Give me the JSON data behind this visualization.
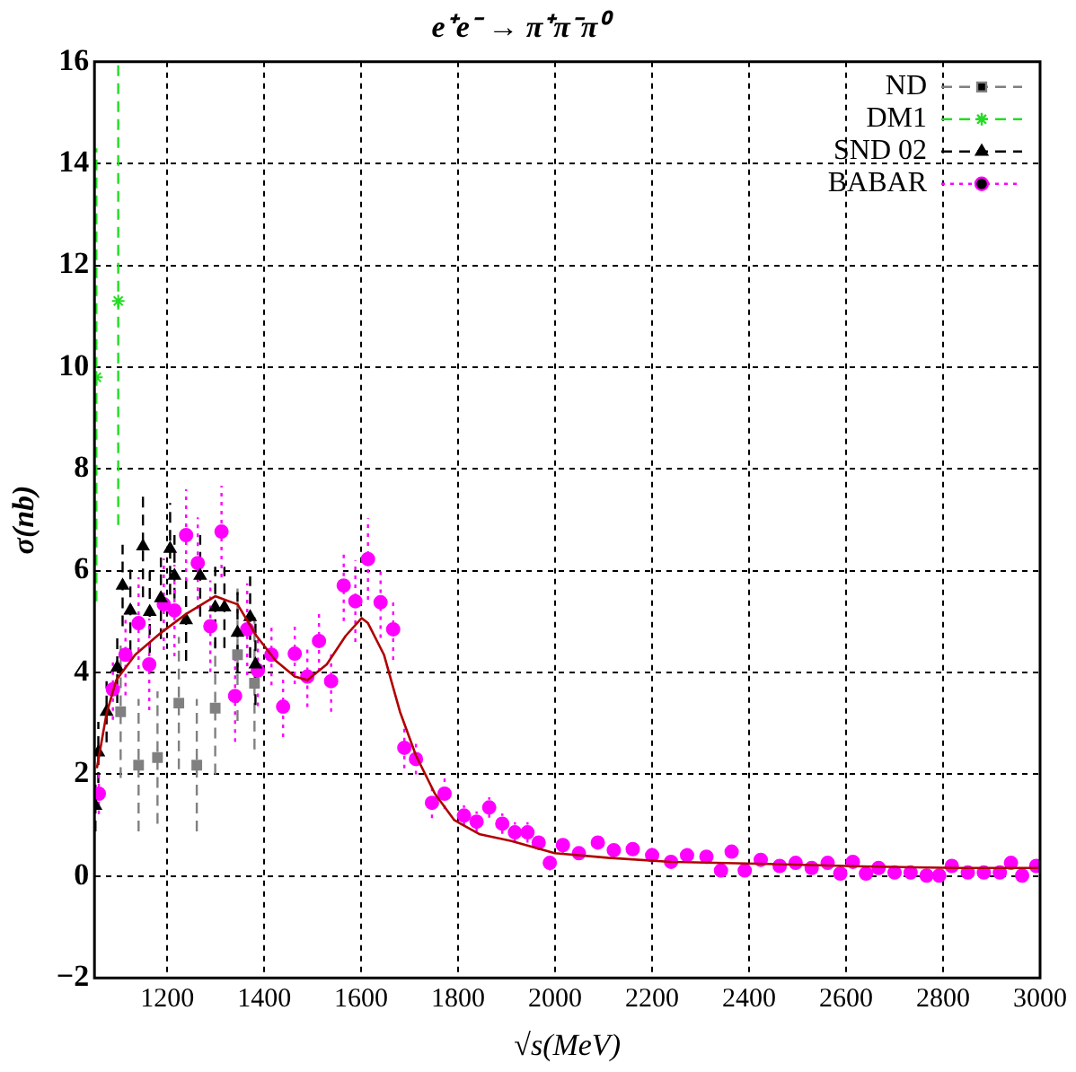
{
  "chart_data": {
    "type": "scatter",
    "title": "e⁺e⁻ → π⁺π⁻π⁰",
    "xlabel": "√s(MeV)",
    "ylabel": "σ(nb)",
    "xlim": [
      1050,
      3000
    ],
    "ylim": [
      -2,
      16
    ],
    "xticks": [
      1200,
      1400,
      1600,
      1800,
      2000,
      2200,
      2400,
      2600,
      2800,
      3000
    ],
    "yticks": [
      -2,
      0,
      2,
      4,
      6,
      8,
      10,
      12,
      14,
      16
    ],
    "grid": true,
    "legend": "top right",
    "series": [
      {
        "name": "ND",
        "color": "#808080",
        "marker": "square",
        "line_style": "dashed",
        "x": [
          1104,
          1141,
          1180,
          1224,
          1261,
          1299,
          1345,
          1380
        ],
        "values": [
          3.23,
          2.18,
          2.33,
          3.4,
          2.18,
          3.3,
          4.35,
          3.79
        ],
        "errors": [
          1.3,
          1.3,
          1.3,
          1.3,
          1.3,
          1.3,
          1.3,
          1.3
        ]
      },
      {
        "name": "DM1",
        "color": "#22dd22",
        "marker": "cross",
        "line_style": "dashed",
        "x": [
          1054,
          1099
        ],
        "values": [
          9.8,
          11.3
        ],
        "errors": [
          [
            5.4,
            14.3
          ],
          [
            6.9,
            16
          ]
        ]
      },
      {
        "name": "SND 02",
        "color": "#000000",
        "marker": "triangle",
        "line_style": "dashed",
        "x": [
          1052,
          1058,
          1075,
          1097,
          1108,
          1124,
          1150,
          1164,
          1187,
          1206,
          1215,
          1239,
          1268,
          1299,
          1318,
          1345,
          1371,
          1382
        ],
        "values": [
          1.38,
          2.43,
          3.23,
          4.1,
          5.71,
          5.22,
          6.48,
          5.19,
          5.46,
          6.43,
          5.9,
          5.03,
          5.9,
          5.28,
          5.28,
          4.78,
          5.09,
          4.16
        ],
        "errors": [
          0.5,
          0.6,
          0.6,
          0.7,
          0.8,
          0.8,
          1,
          0.8,
          0.8,
          0.9,
          0.8,
          0.8,
          0.8,
          0.8,
          0.8,
          0.8,
          0.8,
          0.8
        ]
      },
      {
        "name": "BABAR",
        "color": "#ff00ff",
        "marker": "circle",
        "line_style": "dotted",
        "x": [
          1059,
          1088,
          1114,
          1141,
          1163,
          1193,
          1215,
          1239,
          1263,
          1289,
          1312,
          1340,
          1365,
          1387,
          1415,
          1439,
          1463,
          1489,
          1513,
          1538,
          1564,
          1588,
          1614,
          1640,
          1666,
          1689,
          1713,
          1746,
          1772,
          1812,
          1838,
          1864,
          1891,
          1917,
          1943,
          1966,
          1989,
          2016,
          2049,
          2088,
          2121,
          2160,
          2200,
          2239,
          2272,
          2312,
          2342,
          2364,
          2391,
          2424,
          2463,
          2496,
          2529,
          2562,
          2588,
          2614,
          2641,
          2667,
          2700,
          2733,
          2766,
          2792,
          2818,
          2851,
          2884,
          2917,
          2940,
          2963,
          2992
        ],
        "values": [
          1.62,
          3.67,
          4.35,
          4.97,
          4.16,
          5.34,
          5.22,
          6.7,
          6.15,
          4.91,
          6.77,
          3.54,
          4.85,
          4.04,
          4.35,
          3.33,
          4.37,
          3.92,
          4.62,
          3.83,
          5.71,
          5.4,
          6.23,
          5.38,
          4.85,
          2.52,
          2.3,
          1.44,
          1.62,
          1.19,
          1.07,
          1.35,
          1.03,
          0.86,
          0.86,
          0.66,
          0.26,
          0.61,
          0.45,
          0.66,
          0.51,
          0.53,
          0.41,
          0.28,
          0.41,
          0.38,
          0.11,
          0.48,
          0.11,
          0.32,
          0.2,
          0.26,
          0.16,
          0.26,
          0.05,
          0.28,
          0.05,
          0.16,
          0.07,
          0.07,
          0.01,
          0.01,
          0.2,
          0.07,
          0.07,
          0.07,
          0.26,
          0.01,
          0.2
        ],
        "errors": [
          0.4,
          0.6,
          0.8,
          0.9,
          0.9,
          0.9,
          0.9,
          0.9,
          0.9,
          0.9,
          0.9,
          0.9,
          0.9,
          0.7,
          0.6,
          0.6,
          0.6,
          0.6,
          0.6,
          0.6,
          0.7,
          0.8,
          0.8,
          0.7,
          0.6,
          0.4,
          0.3,
          0.3,
          0.3,
          0.2,
          0.2,
          0.2,
          0.2,
          0.2,
          0.2,
          0.15,
          0.15,
          0.15,
          0.1,
          0.1,
          0.1,
          0.1,
          0.1,
          0.1,
          0.1,
          0.1,
          0.1,
          0.1,
          0.1,
          0.1,
          0.1,
          0.1,
          0.1,
          0.1,
          0.1,
          0.1,
          0.1,
          0.1,
          0.1,
          0.1,
          0.1,
          0.1,
          0.1,
          0.1,
          0.1,
          0.1,
          0.1,
          0.1,
          0.1
        ]
      },
      {
        "type": "line",
        "color": "#b00000",
        "marker": "none",
        "line_style": "solid",
        "x": [
          1055,
          1075,
          1095,
          1134,
          1187,
          1239,
          1299,
          1345,
          1384,
          1424,
          1463,
          1489,
          1529,
          1568,
          1601,
          1614,
          1647,
          1680,
          1713,
          1752,
          1792,
          1845,
          1910,
          1999,
          2108,
          2239,
          2437,
          2634,
          2832,
          2996
        ],
        "values": [
          2.12,
          3.2,
          3.85,
          4.35,
          4.78,
          5.15,
          5.5,
          5.34,
          4.72,
          4.23,
          3.92,
          3.85,
          4.16,
          4.72,
          5.07,
          4.97,
          4.35,
          3.23,
          2.37,
          1.62,
          1.1,
          0.82,
          0.69,
          0.45,
          0.36,
          0.28,
          0.24,
          0.19,
          0.16,
          0.16
        ]
      }
    ]
  }
}
